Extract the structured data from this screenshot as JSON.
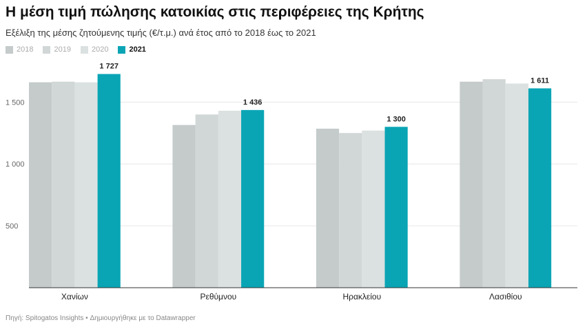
{
  "title": "Η μέση τιμή πώλησης κατοικίας στις περιφέρειες της Κρήτης",
  "subtitle": "Εξέλιξη της μέσης ζητούμενης τιμής (€/τ.μ.) ανά έτος από το 2018 έως το 2021",
  "footer": "Πηγή: Spitogatos Insights • Δημιουργήθηκε με το Datawrapper",
  "colors": {
    "2018": "#c4cbca",
    "2019": "#d0d7d6",
    "2020": "#dbe1e0",
    "2021": "#0aa5b5"
  },
  "chart_data": {
    "type": "bar",
    "categories": [
      "Χανίων",
      "Ρεθύμνου",
      "Ηρακλείου",
      "Λασιθίου"
    ],
    "series": [
      {
        "name": "2018",
        "values": [
          1660,
          1315,
          1285,
          1665
        ]
      },
      {
        "name": "2019",
        "values": [
          1665,
          1400,
          1250,
          1685
        ]
      },
      {
        "name": "2020",
        "values": [
          1660,
          1430,
          1270,
          1650
        ]
      },
      {
        "name": "2021",
        "values": [
          1727,
          1436,
          1300,
          1611
        ]
      }
    ],
    "data_labels": {
      "series": "2021",
      "labels": [
        "1 727",
        "1 436",
        "1 300",
        "1 611"
      ]
    },
    "yticks": [
      500,
      1000,
      1500
    ],
    "ytick_labels": [
      "500",
      "1 000",
      "1 500"
    ],
    "ylim": [
      0,
      1780
    ],
    "grid": true,
    "legend_position": "top-left"
  }
}
